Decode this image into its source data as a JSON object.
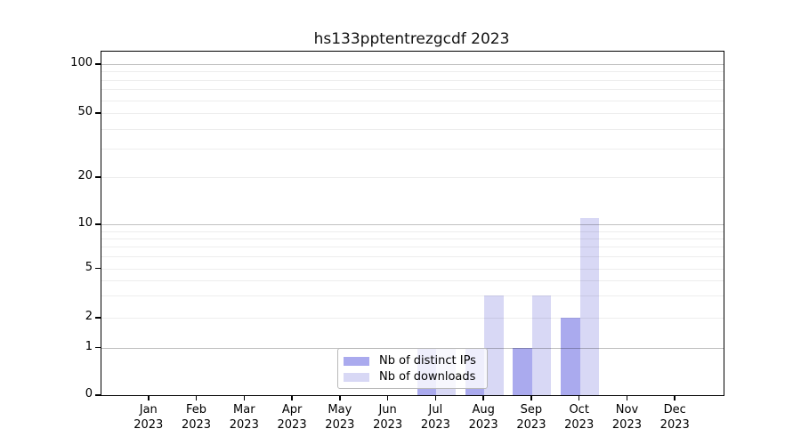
{
  "title": "hs133pptentrezgcdf 2023",
  "legend": {
    "items": [
      {
        "label": "Nb of distinct IPs",
        "color": "#aaaaee"
      },
      {
        "label": "Nb of downloads",
        "color": "#d8d8f5"
      }
    ]
  },
  "axes": {
    "y_tick_labels": [
      "100",
      "50",
      "20",
      "10",
      "5",
      "2",
      "1",
      "0"
    ],
    "x_months": [
      "Jan",
      "Feb",
      "Mar",
      "Apr",
      "May",
      "Jun",
      "Jul",
      "Aug",
      "Sep",
      "Oct",
      "Nov",
      "Dec"
    ],
    "x_year": "2023"
  },
  "chart_data": {
    "type": "bar",
    "title": "hs133pptentrezgcdf 2023",
    "categories": [
      "Jan 2023",
      "Feb 2023",
      "Mar 2023",
      "Apr 2023",
      "May 2023",
      "Jun 2023",
      "Jul 2023",
      "Aug 2023",
      "Sep 2023",
      "Oct 2023",
      "Nov 2023",
      "Dec 2023"
    ],
    "series": [
      {
        "name": "Nb of distinct IPs",
        "color": "#aaaaee",
        "values": [
          0,
          0,
          0,
          0,
          0,
          0,
          1,
          1,
          1,
          2,
          0,
          0
        ]
      },
      {
        "name": "Nb of downloads",
        "color": "#d8d8f5",
        "values": [
          0,
          0,
          0,
          0,
          0,
          0,
          1,
          3,
          3,
          11,
          0,
          0
        ]
      }
    ],
    "xlabel": "",
    "ylabel": "",
    "yscale": "log-like (compressed near zero)",
    "yticks": [
      0,
      1,
      2,
      5,
      10,
      20,
      50,
      100
    ],
    "ylim": [
      0,
      120
    ],
    "grid": true,
    "gridline_minor_values": [
      2,
      3,
      4,
      5,
      6,
      7,
      8,
      9,
      20,
      30,
      40,
      50,
      60,
      70,
      80,
      90
    ],
    "gridline_major_values": [
      1,
      10,
      100
    ],
    "legend_position": "lower center, inside plot"
  }
}
